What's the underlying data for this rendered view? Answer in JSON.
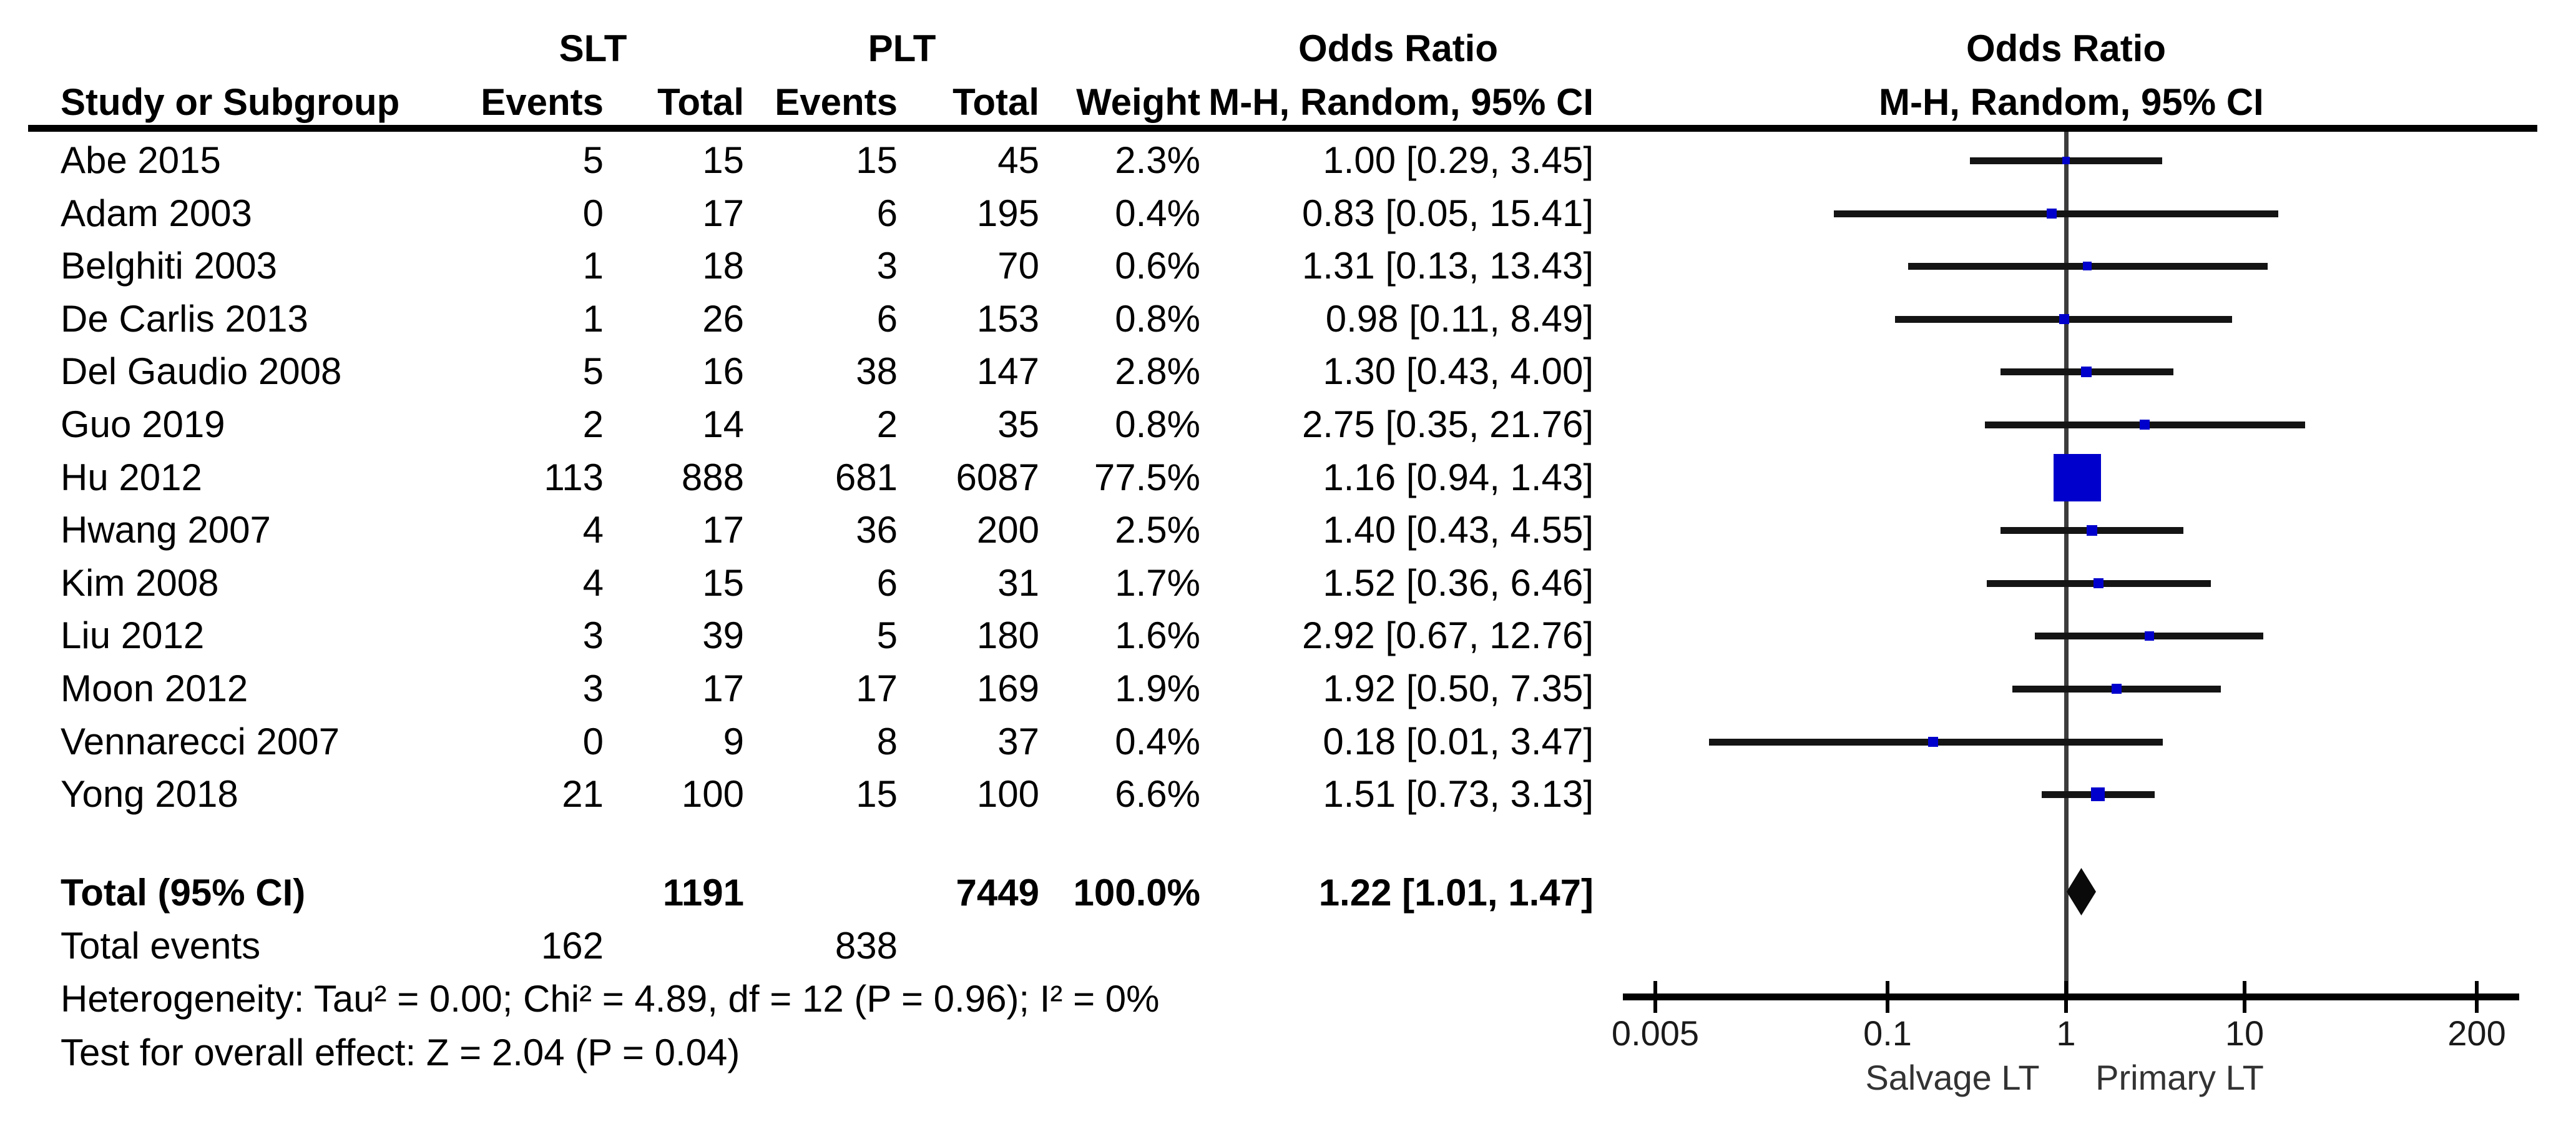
{
  "labels": {
    "group1": "SLT",
    "group2": "PLT",
    "study": "Study or Subgroup",
    "events": "Events",
    "total": "Total",
    "weight": "Weight",
    "or_title": "Odds Ratio",
    "mh_subtitle": "M-H, Random, 95% CI"
  },
  "totals": {
    "label": "Total (95% CI)",
    "slt_total": "1191",
    "plt_total": "7449",
    "weight": "100.0%",
    "or_label": "1.22 [1.01, 1.47]"
  },
  "total_events": {
    "label": "Total events",
    "slt": "162",
    "plt": "838"
  },
  "footer": {
    "heterogeneity": "Heterogeneity: Tau² = 0.00; Chi² = 4.89, df = 12 (P = 0.96); I² = 0%",
    "test": "Test for overall effect: Z = 2.04 (P = 0.04)"
  },
  "colors": {
    "marker_blue": "#0000cc",
    "line_black": "#141414",
    "center_line_gray": "#3c3c3c",
    "diamond_black": "#0a0a0a"
  },
  "chart_data": {
    "type": "forest",
    "title": "Odds Ratio",
    "effect_measure": "M-H, Random, 95% CI",
    "x_scale": "log",
    "x_ticks": [
      0.005,
      0.1,
      1,
      10,
      200
    ],
    "x_tick_labels": [
      "0.005",
      "0.1",
      "1",
      "10",
      "200"
    ],
    "x_axis_labels": {
      "left": "Salvage LT",
      "right": "Primary LT"
    },
    "studies": [
      {
        "name": "Abe 2015",
        "slt_events": 5,
        "slt_total": 15,
        "plt_events": 15,
        "plt_total": 45,
        "weight": "2.3%",
        "or": 1.0,
        "ci_low": 0.29,
        "ci_high": 3.45,
        "label": "1.00 [0.29, 3.45]",
        "marker_size": 12
      },
      {
        "name": "Adam 2003",
        "slt_events": 0,
        "slt_total": 17,
        "plt_events": 6,
        "plt_total": 195,
        "weight": "0.4%",
        "or": 0.83,
        "ci_low": 0.05,
        "ci_high": 15.41,
        "label": "0.83 [0.05, 15.41]",
        "marker_size": 16
      },
      {
        "name": "Belghiti 2003",
        "slt_events": 1,
        "slt_total": 18,
        "plt_events": 3,
        "plt_total": 70,
        "weight": "0.6%",
        "or": 1.31,
        "ci_low": 0.13,
        "ci_high": 13.43,
        "label": "1.31 [0.13, 13.43]",
        "marker_size": 14
      },
      {
        "name": "De Carlis 2013",
        "slt_events": 1,
        "slt_total": 26,
        "plt_events": 6,
        "plt_total": 153,
        "weight": "0.8%",
        "or": 0.98,
        "ci_low": 0.11,
        "ci_high": 8.49,
        "label": "0.98 [0.11, 8.49]",
        "marker_size": 16
      },
      {
        "name": "Del Gaudio 2008",
        "slt_events": 5,
        "slt_total": 16,
        "plt_events": 38,
        "plt_total": 147,
        "weight": "2.8%",
        "or": 1.3,
        "ci_low": 0.43,
        "ci_high": 4.0,
        "label": "1.30 [0.43, 4.00]",
        "marker_size": 17
      },
      {
        "name": "Guo 2019",
        "slt_events": 2,
        "slt_total": 14,
        "plt_events": 2,
        "plt_total": 35,
        "weight": "0.8%",
        "or": 2.75,
        "ci_low": 0.35,
        "ci_high": 21.76,
        "label": "2.75 [0.35, 21.76]",
        "marker_size": 16
      },
      {
        "name": "Hu 2012",
        "slt_events": 113,
        "slt_total": 888,
        "plt_events": 681,
        "plt_total": 6087,
        "weight": "77.5%",
        "or": 1.16,
        "ci_low": 0.94,
        "ci_high": 1.43,
        "label": "1.16 [0.94, 1.43]",
        "marker_size": 76
      },
      {
        "name": "Hwang 2007",
        "slt_events": 4,
        "slt_total": 17,
        "plt_events": 36,
        "plt_total": 200,
        "weight": "2.5%",
        "or": 1.4,
        "ci_low": 0.43,
        "ci_high": 4.55,
        "label": "1.40 [0.43, 4.55]",
        "marker_size": 17
      },
      {
        "name": "Kim 2008",
        "slt_events": 4,
        "slt_total": 15,
        "plt_events": 6,
        "plt_total": 31,
        "weight": "1.7%",
        "or": 1.52,
        "ci_low": 0.36,
        "ci_high": 6.46,
        "label": "1.52 [0.36, 6.46]",
        "marker_size": 16
      },
      {
        "name": "Liu 2012",
        "slt_events": 3,
        "slt_total": 39,
        "plt_events": 5,
        "plt_total": 180,
        "weight": "1.6%",
        "or": 2.92,
        "ci_low": 0.67,
        "ci_high": 12.76,
        "label": "2.92 [0.67, 12.76]",
        "marker_size": 15
      },
      {
        "name": "Moon 2012",
        "slt_events": 3,
        "slt_total": 17,
        "plt_events": 17,
        "plt_total": 169,
        "weight": "1.9%",
        "or": 1.92,
        "ci_low": 0.5,
        "ci_high": 7.35,
        "label": "1.92 [0.50, 7.35]",
        "marker_size": 16
      },
      {
        "name": "Vennarecci 2007",
        "slt_events": 0,
        "slt_total": 9,
        "plt_events": 8,
        "plt_total": 37,
        "weight": "0.4%",
        "or": 0.18,
        "ci_low": 0.01,
        "ci_high": 3.47,
        "label": "0.18 [0.01, 3.47]",
        "marker_size": 16
      },
      {
        "name": "Yong 2018",
        "slt_events": 21,
        "slt_total": 100,
        "plt_events": 15,
        "plt_total": 100,
        "weight": "6.6%",
        "or": 1.51,
        "ci_low": 0.73,
        "ci_high": 3.13,
        "label": "1.51 [0.73, 3.13]",
        "marker_size": 22
      }
    ],
    "total": {
      "or": 1.22,
      "ci_low": 1.01,
      "ci_high": 1.47
    }
  }
}
